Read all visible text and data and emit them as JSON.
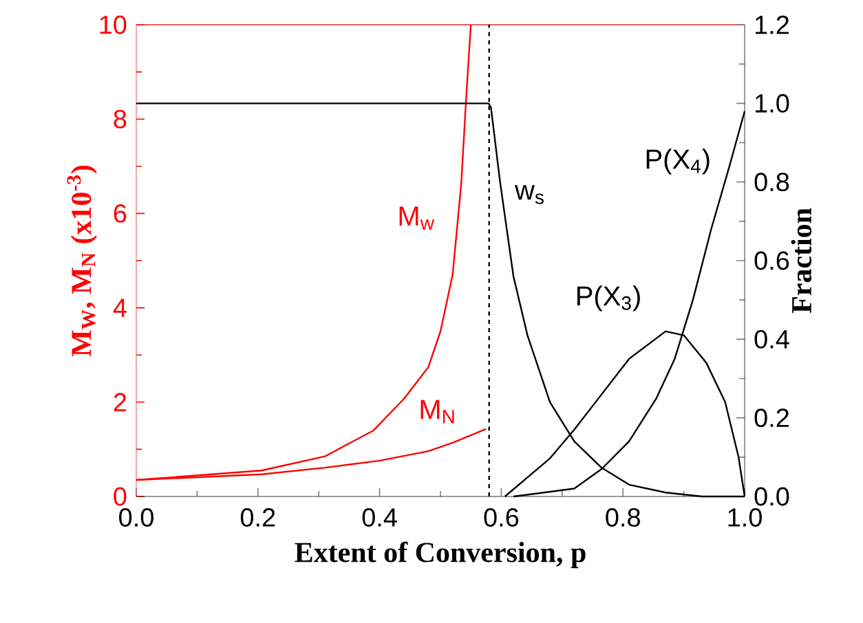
{
  "chart_data": {
    "type": "line",
    "xlabel": "Extent of Conversion, p",
    "ylabel": "M$_{W}$, M$_{N}$ (x10$^{-3}$)",
    "y2label": "Fraction",
    "xlim": [
      0,
      1
    ],
    "ylim": [
      0,
      10
    ],
    "y2lim": [
      0,
      1.2
    ],
    "xticks": [
      {
        "value": 0,
        "label": "0.0"
      },
      {
        "value": 0.1,
        "label": null
      },
      {
        "value": 0.2,
        "label": "0.2"
      },
      {
        "value": 0.3,
        "label": null
      },
      {
        "value": 0.4,
        "label": "0.4"
      },
      {
        "value": 0.5,
        "label": null
      },
      {
        "value": 0.6,
        "label": "0.6"
      },
      {
        "value": 0.7,
        "label": null
      },
      {
        "value": 0.8,
        "label": "0.8"
      },
      {
        "value": 0.9,
        "label": null
      },
      {
        "value": 1,
        "label": "1.0"
      }
    ],
    "yticks": [
      0,
      {
        "value": 1,
        "label": null
      },
      2,
      {
        "value": 3,
        "label": null
      },
      4,
      {
        "value": 5,
        "label": null
      },
      6,
      {
        "value": 7,
        "label": null
      },
      8,
      {
        "value": 9,
        "label": null
      },
      10
    ],
    "y2ticks": [
      {
        "value": 0,
        "label": "0.0"
      },
      {
        "value": 0.1,
        "label": null
      },
      {
        "value": 0.2,
        "label": "0.2"
      },
      {
        "value": 0.3,
        "label": null
      },
      {
        "value": 0.4,
        "label": "0.4"
      },
      {
        "value": 0.5,
        "label": null
      },
      {
        "value": 0.6,
        "label": "0.6"
      },
      {
        "value": 0.7,
        "label": null
      },
      {
        "value": 0.8,
        "label": "0.8"
      },
      {
        "value": 0.9,
        "label": null
      },
      {
        "value": 1,
        "label": "1.0"
      },
      {
        "value": 1.1,
        "label": null
      },
      {
        "value": 1.2,
        "label": "1.2"
      }
    ],
    "series": [
      {
        "color": "#ff0000",
        "x": [
          0,
          0.206,
          0.31,
          0.39,
          0.44,
          0.48,
          0.5,
          0.52,
          0.534,
          0.543,
          0.55
        ],
        "values": [
          0.35,
          0.55,
          0.85,
          1.4,
          2.07,
          2.74,
          3.5,
          4.7,
          6.6,
          8.6,
          10
        ]
      },
      {
        "color": "#ff0000",
        "x": [
          0,
          0.206,
          0.31,
          0.4,
          0.48,
          0.52,
          0.575
        ],
        "values": [
          0.35,
          0.47,
          0.61,
          0.76,
          0.96,
          1.14,
          1.43
        ]
      },
      {
        "color": "#000000",
        "axis": "y2",
        "x": [
          0,
          0.579,
          0.583,
          0.598,
          0.62,
          0.643,
          0.68,
          0.72,
          0.765,
          0.81,
          0.87,
          0.93,
          1
        ],
        "values": [
          1,
          1,
          0.99,
          0.8,
          0.56,
          0.41,
          0.24,
          0.14,
          0.073,
          0.03,
          0.01,
          0,
          0
        ]
      },
      {
        "color": "#000000",
        "axis": "y2",
        "x": [
          0.606,
          0.68,
          0.72,
          0.765,
          0.81,
          0.87,
          0.9,
          0.937,
          0.968,
          0.99,
          1
        ],
        "values": [
          0,
          0.097,
          0.17,
          0.26,
          0.35,
          0.42,
          0.41,
          0.34,
          0.24,
          0.1,
          0
        ]
      },
      {
        "color": "#000000",
        "axis": "y2",
        "x": [
          0.62,
          0.72,
          0.765,
          0.81,
          0.855,
          0.885,
          0.915,
          0.945,
          0.975,
          1
        ],
        "values": [
          0,
          0.02,
          0.07,
          0.14,
          0.25,
          0.35,
          0.5,
          0.68,
          0.84,
          0.98
        ]
      }
    ],
    "ref_lines": [
      {
        "axis": "x",
        "value": 0.58,
        "color": "#000000",
        "line_style": "dashed"
      }
    ],
    "annotations": [
      "M$_{w}$",
      "M$_{N}$",
      "w$_{s}$",
      "P(X$_{3}$)",
      "P(X$_{4}$)"
    ]
  }
}
